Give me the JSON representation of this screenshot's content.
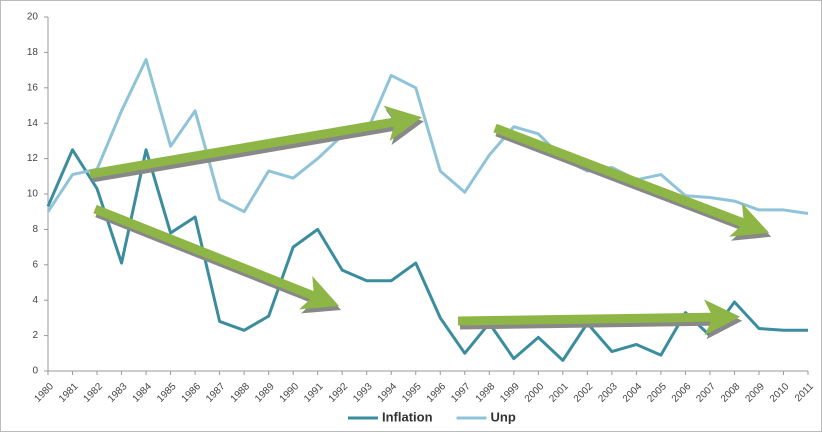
{
  "chart_data": {
    "type": "line",
    "categories": [
      "1980",
      "1981",
      "1982",
      "1983",
      "1984",
      "1985",
      "1986",
      "1987",
      "1988",
      "1989",
      "1990",
      "1991",
      "1992",
      "1993",
      "1994",
      "1995",
      "1996",
      "1997",
      "1998",
      "1999",
      "2000",
      "2001",
      "2002",
      "2003",
      "2004",
      "2005",
      "2006",
      "2007",
      "2008",
      "2009",
      "2010",
      "2011"
    ],
    "series": [
      {
        "name": "Inflation",
        "color": "#3a8d9e",
        "values": [
          9.3,
          12.5,
          10.3,
          6.1,
          12.5,
          7.8,
          8.7,
          2.8,
          2.3,
          3.1,
          7.0,
          8.0,
          5.7,
          5.1,
          5.1,
          6.1,
          3.0,
          1.0,
          2.7,
          0.7,
          1.9,
          0.6,
          2.7,
          1.1,
          1.5,
          0.9,
          3.3,
          2.0,
          3.9,
          2.4,
          2.3,
          2.3
        ]
      },
      {
        "name": "Unp",
        "color": "#8fc4d8",
        "values": [
          9.0,
          11.1,
          11.4,
          14.7,
          17.6,
          12.7,
          14.7,
          9.7,
          9.0,
          11.3,
          10.9,
          12.0,
          13.3,
          13.5,
          16.7,
          16.0,
          11.3,
          10.1,
          12.2,
          13.8,
          13.4,
          12.0,
          11.3,
          11.5,
          10.8,
          11.1,
          9.9,
          9.8,
          9.6,
          9.1,
          9.1,
          8.9
        ]
      }
    ],
    "ylim": [
      0,
      20
    ],
    "yticks": [
      0,
      2,
      4,
      6,
      8,
      10,
      12,
      14,
      16,
      18,
      20
    ],
    "legend": "bottom"
  }
}
